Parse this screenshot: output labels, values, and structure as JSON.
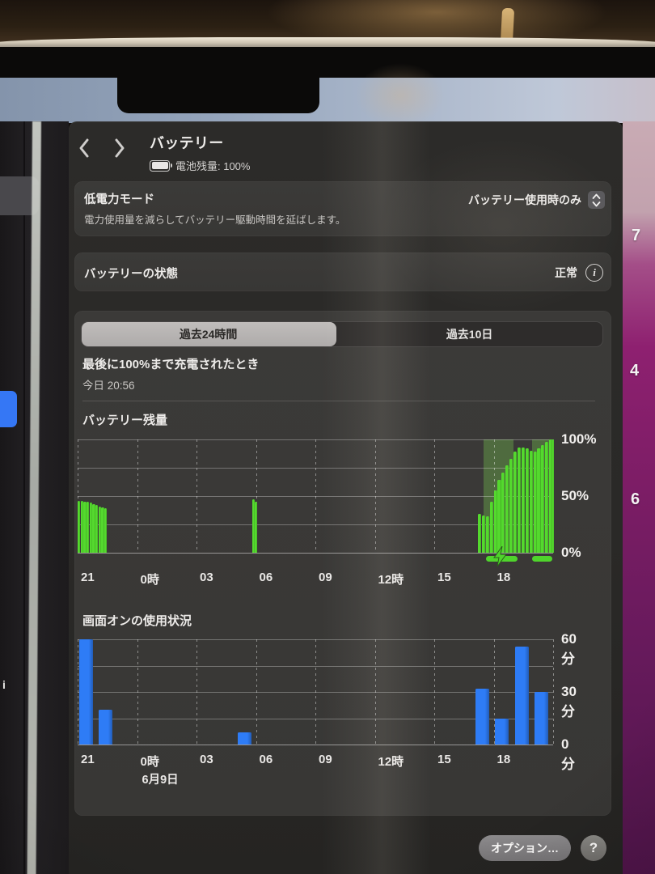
{
  "header": {
    "title": "バッテリー",
    "subtitle": "電池残量: 100%"
  },
  "low_power": {
    "title": "低電力モード",
    "description": "電力使用量を減らしてバッテリー駆動時間を延ばします。",
    "value": "バッテリー使用時のみ"
  },
  "battery_health": {
    "label": "バッテリーの状態",
    "value": "正常"
  },
  "tabs": [
    {
      "label": "過去24時間",
      "selected": true
    },
    {
      "label": "過去10日",
      "selected": false
    }
  ],
  "last_charge": {
    "label": "最後に100%まで充電されたとき",
    "value": "今日 20:56"
  },
  "chart_data": [
    {
      "type": "bar",
      "title": "バッテリー残量",
      "ylim": [
        0,
        100
      ],
      "ytick_step": 25,
      "ylabels": [
        {
          "text": "100%",
          "v": 100
        },
        {
          "text": "50%",
          "v": 50
        },
        {
          "text": "0%",
          "v": 0
        }
      ],
      "x_span_hours": 24,
      "x_start_clock": "21:00",
      "xticks": [
        {
          "t": 0,
          "label": "21"
        },
        {
          "t": 3,
          "label": "0時"
        },
        {
          "t": 6,
          "label": "03"
        },
        {
          "t": 9,
          "label": "06"
        },
        {
          "t": 12,
          "label": "09"
        },
        {
          "t": 15,
          "label": "12時"
        },
        {
          "t": 18,
          "label": "15"
        },
        {
          "t": 21,
          "label": "18"
        },
        {
          "t": 24,
          "label": ""
        }
      ],
      "bar_color": "#54d92e",
      "region_color": "rgba(128,224,84,0.30)",
      "strip_color": "#4fd42c",
      "bars": [
        {
          "t": 0.0,
          "v": 46
        },
        {
          "t": 0.15,
          "v": 46
        },
        {
          "t": 0.3,
          "v": 45
        },
        {
          "t": 0.45,
          "v": 45
        },
        {
          "t": 0.6,
          "v": 44
        },
        {
          "t": 0.75,
          "v": 43
        },
        {
          "t": 0.9,
          "v": 42
        },
        {
          "t": 1.05,
          "v": 41
        },
        {
          "t": 1.2,
          "v": 40
        },
        {
          "t": 1.35,
          "v": 39
        },
        {
          "t": 8.8,
          "v": 47
        },
        {
          "t": 8.95,
          "v": 45
        },
        {
          "t": 20.2,
          "v": 34,
          "w": 0.17
        },
        {
          "t": 20.4,
          "v": 33,
          "w": 0.17
        },
        {
          "t": 20.6,
          "v": 32,
          "w": 0.17
        },
        {
          "t": 20.8,
          "v": 45,
          "w": 0.17
        },
        {
          "t": 21.0,
          "v": 55,
          "w": 0.17
        },
        {
          "t": 21.2,
          "v": 64,
          "w": 0.17
        },
        {
          "t": 21.4,
          "v": 71,
          "w": 0.17
        },
        {
          "t": 21.6,
          "v": 77,
          "w": 0.17
        },
        {
          "t": 21.8,
          "v": 83,
          "w": 0.17
        },
        {
          "t": 22.0,
          "v": 89,
          "w": 0.17
        },
        {
          "t": 22.2,
          "v": 93,
          "w": 0.17
        },
        {
          "t": 22.4,
          "v": 93,
          "w": 0.17
        },
        {
          "t": 22.6,
          "v": 92,
          "w": 0.17
        },
        {
          "t": 22.8,
          "v": 90,
          "w": 0.17
        },
        {
          "t": 23.0,
          "v": 89,
          "w": 0.17
        },
        {
          "t": 23.2,
          "v": 92,
          "w": 0.17
        },
        {
          "t": 23.4,
          "v": 95,
          "w": 0.17
        },
        {
          "t": 23.6,
          "v": 98,
          "w": 0.17
        },
        {
          "t": 23.8,
          "v": 100,
          "w": 0.17
        },
        {
          "t": 23.97,
          "v": 100,
          "w": 0.15
        }
      ],
      "charge_regions": [
        {
          "t0": 20.5,
          "t1": 22.0
        },
        {
          "t0": 22.95,
          "t1": 24.0
        }
      ],
      "charge_strips": [
        {
          "t0": 20.6,
          "t1": 22.2
        },
        {
          "t0": 22.95,
          "t1": 23.95
        }
      ],
      "bolt_t": 21.3
    },
    {
      "type": "bar",
      "title": "画面オンの使用状況",
      "ylim": [
        0,
        60
      ],
      "ytick_step": 15,
      "ylabels": [
        {
          "text": "60分",
          "v": 60
        },
        {
          "text": "30分",
          "v": 30
        },
        {
          "text": "0分",
          "v": 0
        }
      ],
      "x_span_hours": 24,
      "xticks": [
        {
          "t": 0,
          "label": "21"
        },
        {
          "t": 3,
          "label": "0時"
        },
        {
          "t": 6,
          "label": "03"
        },
        {
          "t": 9,
          "label": "06"
        },
        {
          "t": 12,
          "label": "09"
        },
        {
          "t": 15,
          "label": "12時"
        },
        {
          "t": 18,
          "label": "15"
        },
        {
          "t": 21,
          "label": "18"
        },
        {
          "t": 24,
          "label": ""
        }
      ],
      "date_label": {
        "t": 3,
        "text": "6月9日"
      },
      "bar_color": "#2e7cf6",
      "bars": [
        {
          "h": 0,
          "v": 60
        },
        {
          "h": 1,
          "v": 20
        },
        {
          "h": 8,
          "v": 7
        },
        {
          "h": 20,
          "v": 32
        },
        {
          "h": 21,
          "v": 15
        },
        {
          "h": 22,
          "v": 56
        },
        {
          "h": 23,
          "v": 30
        }
      ]
    }
  ],
  "footer": {
    "options_label": "オプション…",
    "help_label": "?"
  },
  "icons": {
    "back": "chevron-left",
    "forward": "chevron-right",
    "battery": "battery-full",
    "popup_stepper": "up-down-chevrons",
    "info_glyph": "i",
    "charging": "lightning-bolt"
  },
  "surroundings": {
    "left_window_fragment": "i",
    "right_wallpaper_fragments": [
      "7",
      "4",
      "6"
    ]
  },
  "colors": {
    "battery_green": "#54d92e",
    "usage_blue": "#2e7cf6",
    "charging_overlay": "rgba(128,224,84,0.30)",
    "selected_tab": "#b7b4b2",
    "accent_blue_fragment": "#3577f5"
  }
}
